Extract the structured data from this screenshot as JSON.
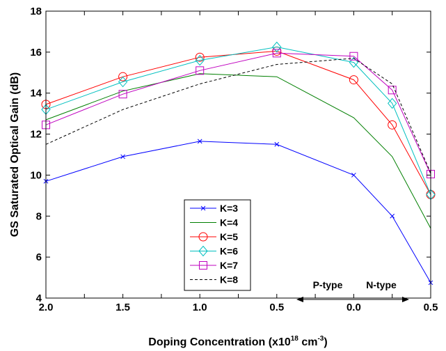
{
  "chart_data": {
    "type": "line",
    "xlabel_main": "Doping Concentration (x10",
    "xlabel_exp1": "18",
    "xlabel_mid": " cm",
    "xlabel_exp2": "-3",
    "xlabel_end": ")",
    "ylabel": "GS Saturated Optical Gain (dB)",
    "x_tick_labels": [
      "2.0",
      "1.5",
      "1.0",
      "0.5",
      "0.0",
      "0.5",
      "0.5"
    ],
    "y_ticks": [
      4,
      6,
      8,
      10,
      12,
      14,
      16,
      18
    ],
    "y_tick_labels": [
      "4",
      "6",
      "8",
      "10",
      "12",
      "14",
      "16",
      "18"
    ],
    "ylim": [
      4,
      18
    ],
    "x_positions": [
      0,
      0.5,
      1.0,
      1.5,
      2.0,
      2.25,
      2.5
    ],
    "x_minor_positions": [
      0.25,
      0.75,
      1.25,
      1.75
    ],
    "xlim": [
      0,
      2.5
    ],
    "grid": false,
    "legend_placement": "bottom-center",
    "series": [
      {
        "name": "K=3",
        "color": "#0000ff",
        "marker": "x",
        "dash": "",
        "values": [
          9.7,
          10.9,
          11.65,
          11.5,
          10.0,
          8.0,
          4.75
        ]
      },
      {
        "name": "K=4",
        "color": "#007f00",
        "marker": "none",
        "dash": "",
        "values": [
          12.7,
          14.1,
          14.95,
          14.8,
          12.8,
          10.9,
          7.4
        ]
      },
      {
        "name": "K=5",
        "color": "#ff0000",
        "marker": "circle",
        "dash": "",
        "values": [
          13.45,
          14.8,
          15.75,
          16.05,
          14.65,
          12.45,
          9.05
        ]
      },
      {
        "name": "K=6",
        "color": "#00bfbf",
        "marker": "diamond",
        "dash": "",
        "values": [
          13.2,
          14.55,
          15.6,
          16.25,
          15.5,
          13.5,
          9.05
        ]
      },
      {
        "name": "K=7",
        "color": "#bf00bf",
        "marker": "square",
        "dash": "",
        "values": [
          12.45,
          13.95,
          15.1,
          15.95,
          15.8,
          14.15,
          10.05
        ]
      },
      {
        "name": "K=8",
        "color": "#000000",
        "marker": "none",
        "dash": "4,3",
        "values": [
          11.5,
          13.2,
          14.45,
          15.4,
          15.7,
          14.45,
          10.1
        ]
      }
    ],
    "annotations": {
      "p_type": "P-type",
      "n_type": "N-type"
    }
  }
}
